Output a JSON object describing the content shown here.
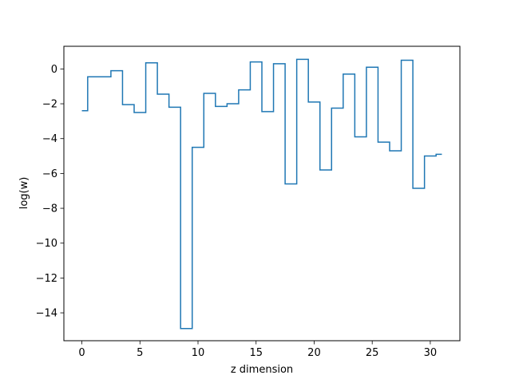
{
  "chart_data": {
    "type": "line",
    "drawstyle": "steps-mid",
    "xlabel": "z dimension",
    "ylabel": "log(w)",
    "xlim": [
      -1.55,
      32.55
    ],
    "ylim": [
      -15.6,
      1.3
    ],
    "xticks": [
      0,
      5,
      10,
      15,
      20,
      25,
      30
    ],
    "yticks": [
      0,
      -2,
      -4,
      -6,
      -8,
      -10,
      -12,
      -14
    ],
    "grid": false,
    "color": "#1f77b4",
    "series": [
      {
        "x": [
          0,
          1,
          2,
          3,
          4,
          5,
          6,
          7,
          8,
          9,
          10,
          11,
          12,
          13,
          14,
          15,
          16,
          17,
          18,
          19,
          20,
          21,
          22,
          23,
          24,
          25,
          26,
          27,
          28,
          29,
          30,
          31
        ],
        "values": [
          -2.4,
          -0.45,
          -0.45,
          -0.1,
          -2.05,
          -2.5,
          0.35,
          -1.45,
          -2.2,
          -14.9,
          -4.5,
          -1.4,
          -2.15,
          -2.0,
          -1.2,
          0.4,
          -2.45,
          0.3,
          -6.6,
          0.55,
          -1.9,
          -5.8,
          -2.25,
          -0.3,
          -3.9,
          0.1,
          -4.2,
          -4.7,
          0.5,
          -6.85,
          -5.0,
          -4.9
        ]
      }
    ]
  }
}
